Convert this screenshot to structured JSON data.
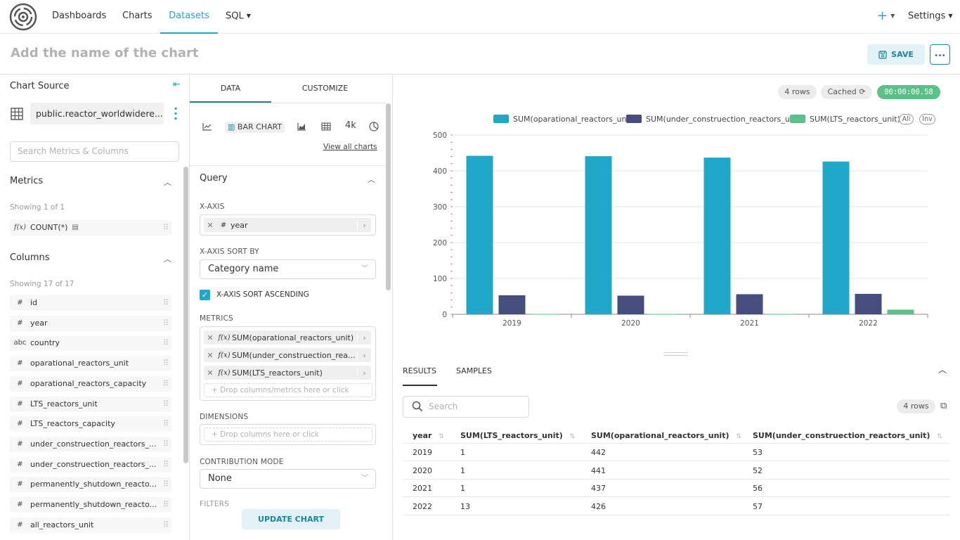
{
  "nav": {
    "items": [
      "Dashboards",
      "Charts",
      "Datasets",
      "SQL"
    ],
    "active": "Datasets",
    "plus": "+",
    "settings": "Settings"
  },
  "header": {
    "chart_title": "Add the name of the chart",
    "save_label": "SAVE",
    "more_label": "..."
  },
  "source": {
    "title": "Chart Source",
    "dataset": "public.reactor_worldwidere...",
    "search_placeholder": "Search Metrics & Columns"
  },
  "metrics": {
    "title": "Metrics",
    "showing": "Showing 1 of 1",
    "items": [
      {
        "type": "f(x)",
        "name": "COUNT(*)"
      }
    ]
  },
  "columns": {
    "title": "Columns",
    "showing": "Showing 17 of 17",
    "items": [
      {
        "type": "#",
        "name": "id"
      },
      {
        "type": "#",
        "name": "year"
      },
      {
        "type": "abc",
        "name": "country"
      },
      {
        "type": "#",
        "name": "oparational_reactors_unit"
      },
      {
        "type": "#",
        "name": "oparational_reactors_capacity"
      },
      {
        "type": "#",
        "name": "LTS_reactors_unit"
      },
      {
        "type": "#",
        "name": "LTS_reactors_capacity"
      },
      {
        "type": "#",
        "name": "under_construection_reactors_..."
      },
      {
        "type": "#",
        "name": "under_construection_reactors_..."
      },
      {
        "type": "#",
        "name": "permanently_shutdown_reacto..."
      },
      {
        "type": "#",
        "name": "permanently_shutdown_reacto..."
      },
      {
        "type": "#",
        "name": "all_reactors_unit"
      }
    ]
  },
  "config": {
    "tab_data": "DATA",
    "tab_customize": "CUSTOMIZE",
    "viz_bar_label": "BAR CHART",
    "viz_4k": "4k",
    "view_all": "View all charts",
    "query_title": "Query",
    "xaxis_label": "X-AXIS",
    "xaxis_value": "year",
    "xaxis_sort_label": "X-AXIS SORT BY",
    "xaxis_sort_value": "Category name",
    "sort_asc_label": "X-AXIS SORT ASCENDING",
    "metrics_label": "METRICS",
    "metric_items": [
      "SUM(oparational_reactors_unit)",
      "SUM(under_construection_rea...",
      "SUM(LTS_reactors_unit)"
    ],
    "metrics_drop": "Drop columns/metrics here or click",
    "dimensions_label": "DIMENSIONS",
    "dimensions_drop": "Drop columns here or click",
    "contribution_label": "CONTRIBUTION MODE",
    "contribution_value": "None",
    "filters_label": "FILTERS",
    "update_label": "UPDATE CHART"
  },
  "status": {
    "rows": "4 rows",
    "cached": "Cached",
    "timer": "00:00:00.58"
  },
  "legend": {
    "all": "All",
    "inv": "Inv"
  },
  "chart_data": {
    "type": "bar",
    "categories": [
      "2019",
      "2020",
      "2021",
      "2022"
    ],
    "series": [
      {
        "name": "SUM(oparational_reactors_unit)",
        "values": [
          442,
          441,
          437,
          426
        ],
        "color": "#1fa8c9"
      },
      {
        "name": "SUM(under_construection_reactors_unit)",
        "values": [
          53,
          52,
          56,
          57
        ],
        "color": "#454e7c"
      },
      {
        "name": "SUM(LTS_reactors_unit)",
        "values": [
          1,
          1,
          1,
          13
        ],
        "color": "#5ac189"
      }
    ],
    "ylim": [
      0,
      500
    ],
    "yticks": [
      "0",
      "100",
      "200",
      "300",
      "400",
      "500"
    ],
    "legend_position": "top",
    "grid": true
  },
  "results": {
    "tab_results": "RESULTS",
    "tab_samples": "SAMPLES",
    "search_placeholder": "Search",
    "rows": "4 rows",
    "headers": [
      "year",
      "SUM(LTS_reactors_unit)",
      "SUM(oparational_reactors_unit)",
      "SUM(under_construection_reactors_unit)"
    ],
    "data": [
      [
        "2019",
        "1",
        "442",
        "53"
      ],
      [
        "2020",
        "1",
        "441",
        "52"
      ],
      [
        "2021",
        "1",
        "437",
        "56"
      ],
      [
        "2022",
        "13",
        "426",
        "57"
      ]
    ]
  }
}
